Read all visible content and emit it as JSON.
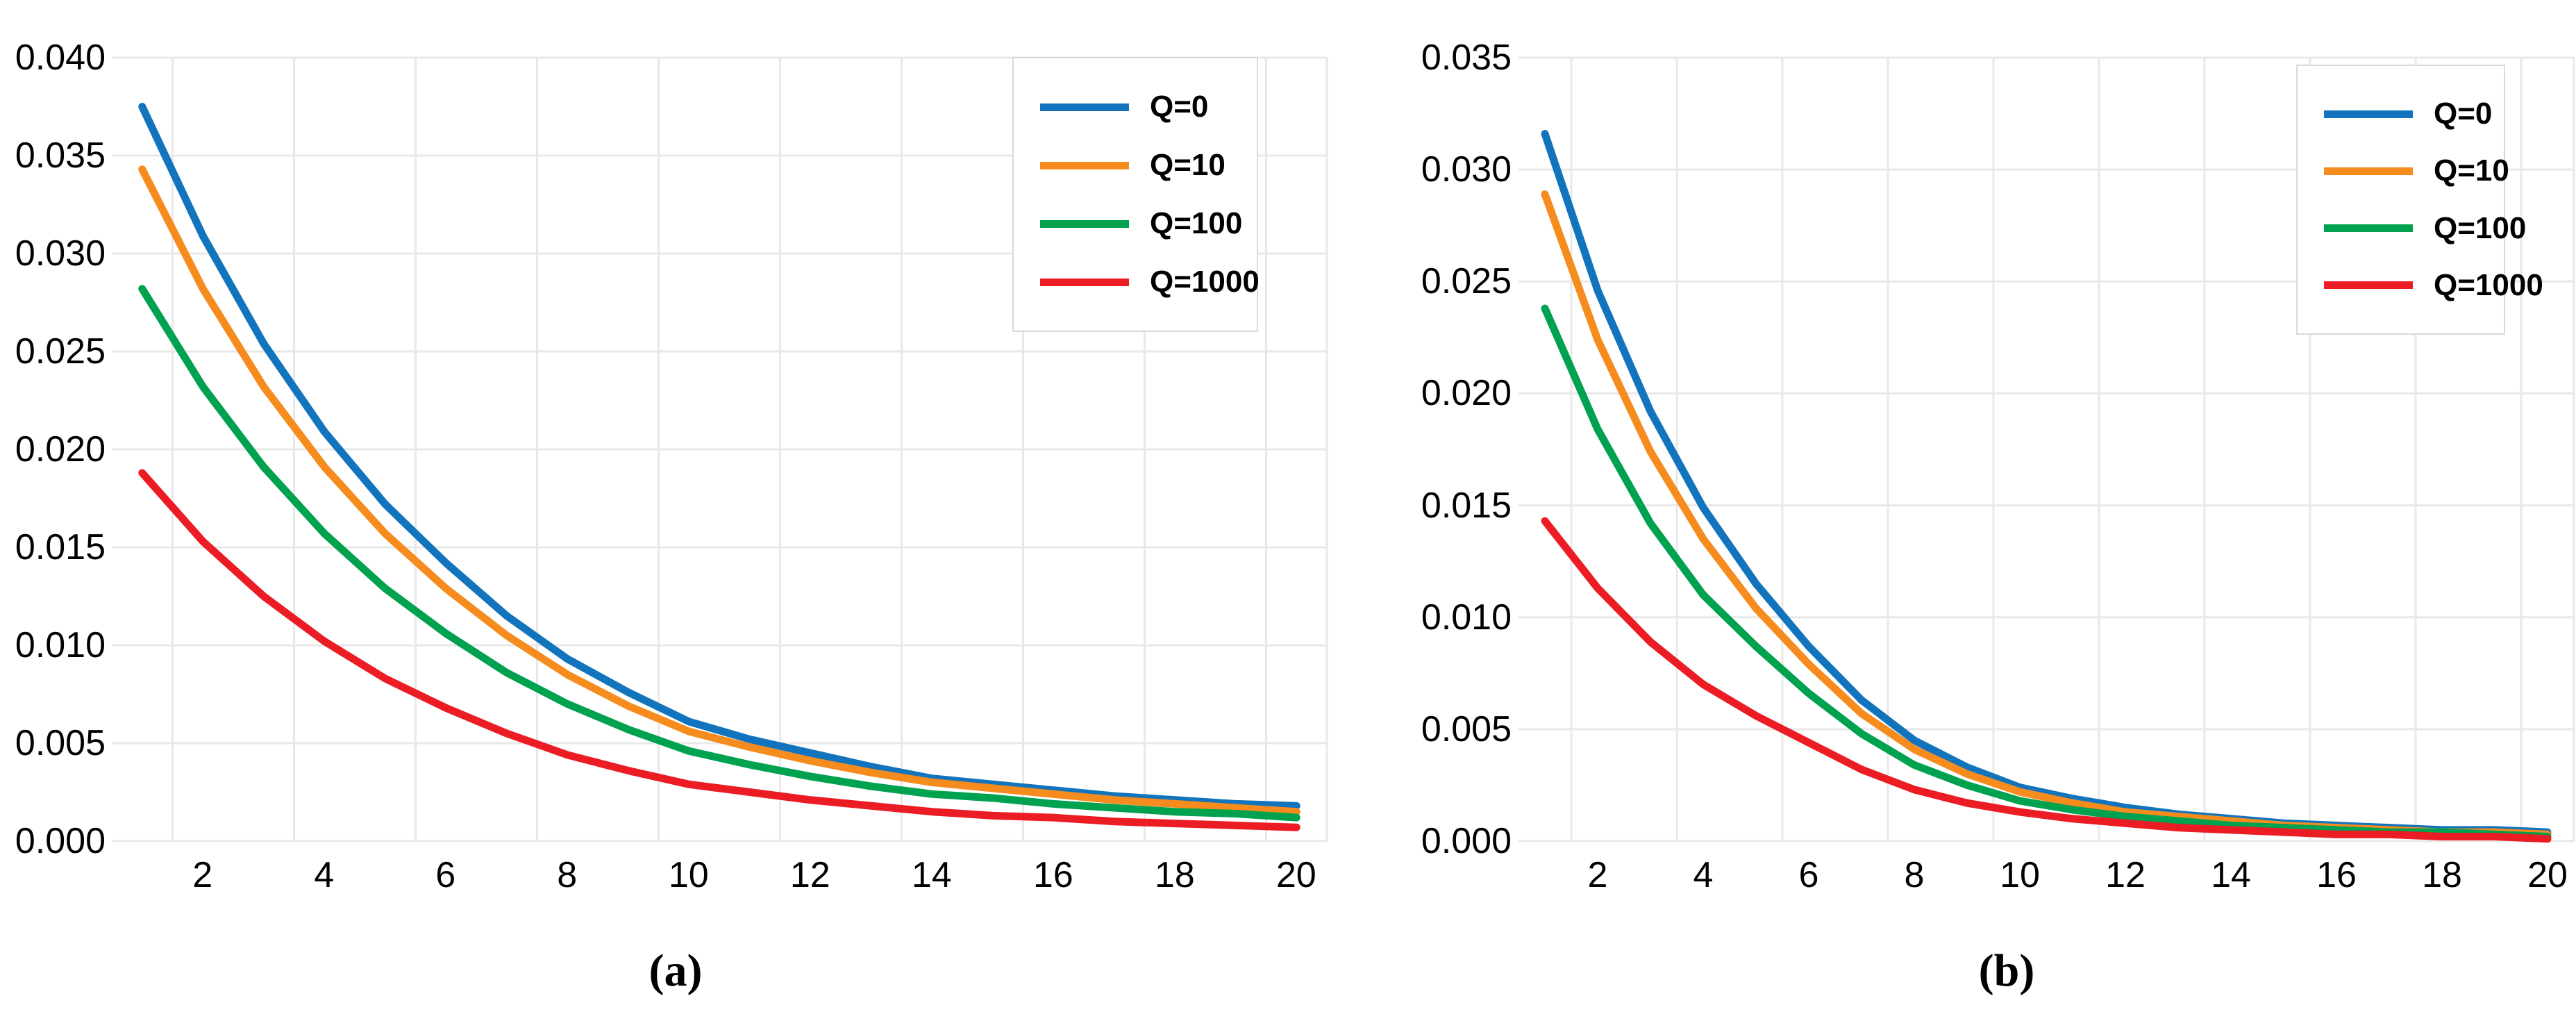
{
  "page": {
    "background": "#ffffff",
    "grid_color": "#e8e8e8",
    "text_color": "#000000",
    "legend_border_color": "#d9d9d9"
  },
  "chart_data": [
    {
      "id": "a",
      "type": "line",
      "caption": "(a)",
      "title": "",
      "xlabel": "",
      "ylabel": "",
      "grid": true,
      "legend_position": "top-right",
      "xlim": [
        0.5,
        20.5
      ],
      "ylim": [
        0,
        0.04
      ],
      "x": [
        1,
        2,
        3,
        4,
        5,
        6,
        7,
        8,
        9,
        10,
        11,
        12,
        13,
        14,
        15,
        16,
        17,
        18,
        19,
        20
      ],
      "x_ticks": [
        2,
        4,
        6,
        8,
        10,
        12,
        14,
        16,
        18,
        20
      ],
      "y_ticks": [
        0.0,
        0.005,
        0.01,
        0.015,
        0.02,
        0.025,
        0.03,
        0.035,
        0.04
      ],
      "y_tick_labels": [
        "0.000",
        "0.005",
        "0.010",
        "0.015",
        "0.020",
        "0.025",
        "0.030",
        "0.035",
        "0.040"
      ],
      "series": [
        {
          "name": "Q=0",
          "color": "#1274bc",
          "values": [
            0.0375,
            0.0309,
            0.0254,
            0.0209,
            0.0172,
            0.0142,
            0.0115,
            0.0093,
            0.0076,
            0.0061,
            0.0052,
            0.0045,
            0.0038,
            0.0032,
            0.0029,
            0.0026,
            0.0023,
            0.0021,
            0.0019,
            0.0018
          ]
        },
        {
          "name": "Q=10",
          "color": "#f68b1e",
          "values": [
            0.0343,
            0.0282,
            0.0232,
            0.0191,
            0.0157,
            0.0129,
            0.0105,
            0.0085,
            0.0069,
            0.0056,
            0.0048,
            0.0041,
            0.0035,
            0.003,
            0.0027,
            0.0024,
            0.0021,
            0.0019,
            0.0017,
            0.0015
          ]
        },
        {
          "name": "Q=100",
          "color": "#00a14f",
          "values": [
            0.0282,
            0.0232,
            0.0191,
            0.0157,
            0.0129,
            0.0106,
            0.0086,
            0.007,
            0.0057,
            0.0046,
            0.0039,
            0.0033,
            0.0028,
            0.0024,
            0.0022,
            0.0019,
            0.0017,
            0.0015,
            0.0014,
            0.0012
          ]
        },
        {
          "name": "Q=1000",
          "color": "#ec1c24",
          "values": [
            0.0188,
            0.0153,
            0.0125,
            0.0102,
            0.0083,
            0.0068,
            0.0055,
            0.0044,
            0.0036,
            0.0029,
            0.0025,
            0.0021,
            0.0018,
            0.0015,
            0.0013,
            0.0012,
            0.001,
            0.0009,
            0.0008,
            0.0007
          ]
        }
      ]
    },
    {
      "id": "b",
      "type": "line",
      "caption": "(b)",
      "title": "",
      "xlabel": "",
      "ylabel": "",
      "grid": true,
      "legend_position": "top-right",
      "xlim": [
        0.5,
        20.5
      ],
      "ylim": [
        0,
        0.035
      ],
      "x": [
        1,
        2,
        3,
        4,
        5,
        6,
        7,
        8,
        9,
        10,
        11,
        12,
        13,
        14,
        15,
        16,
        17,
        18,
        19,
        20
      ],
      "x_ticks": [
        2,
        4,
        6,
        8,
        10,
        12,
        14,
        16,
        18,
        20
      ],
      "y_ticks": [
        0.0,
        0.005,
        0.01,
        0.015,
        0.02,
        0.025,
        0.03,
        0.035
      ],
      "y_tick_labels": [
        "0.000",
        "0.005",
        "0.010",
        "0.015",
        "0.020",
        "0.025",
        "0.030",
        "0.035"
      ],
      "series": [
        {
          "name": "Q=0",
          "color": "#1274bc",
          "values": [
            0.0316,
            0.0246,
            0.0192,
            0.0149,
            0.0115,
            0.0087,
            0.0063,
            0.0045,
            0.0033,
            0.0024,
            0.0019,
            0.0015,
            0.0012,
            0.001,
            0.0008,
            0.0007,
            0.0006,
            0.0005,
            0.0005,
            0.0004
          ]
        },
        {
          "name": "Q=10",
          "color": "#f68b1e",
          "values": [
            0.0289,
            0.0224,
            0.0174,
            0.0135,
            0.0104,
            0.0079,
            0.0057,
            0.0041,
            0.003,
            0.0022,
            0.0017,
            0.0013,
            0.0011,
            0.0009,
            0.0007,
            0.0006,
            0.0005,
            0.0004,
            0.0004,
            0.0003
          ]
        },
        {
          "name": "Q=100",
          "color": "#00a14f",
          "values": [
            0.0238,
            0.0184,
            0.0142,
            0.011,
            0.0087,
            0.0066,
            0.0048,
            0.0034,
            0.0025,
            0.0018,
            0.0014,
            0.0011,
            0.0009,
            0.0007,
            0.0006,
            0.0005,
            0.0004,
            0.0004,
            0.0003,
            0.0002
          ]
        },
        {
          "name": "Q=1000",
          "color": "#ec1c24",
          "values": [
            0.0143,
            0.0113,
            0.0089,
            0.007,
            0.0056,
            0.0044,
            0.0032,
            0.0023,
            0.0017,
            0.0013,
            0.001,
            0.0008,
            0.0006,
            0.0005,
            0.0004,
            0.0003,
            0.0003,
            0.0002,
            0.0002,
            0.0001
          ]
        }
      ]
    }
  ]
}
